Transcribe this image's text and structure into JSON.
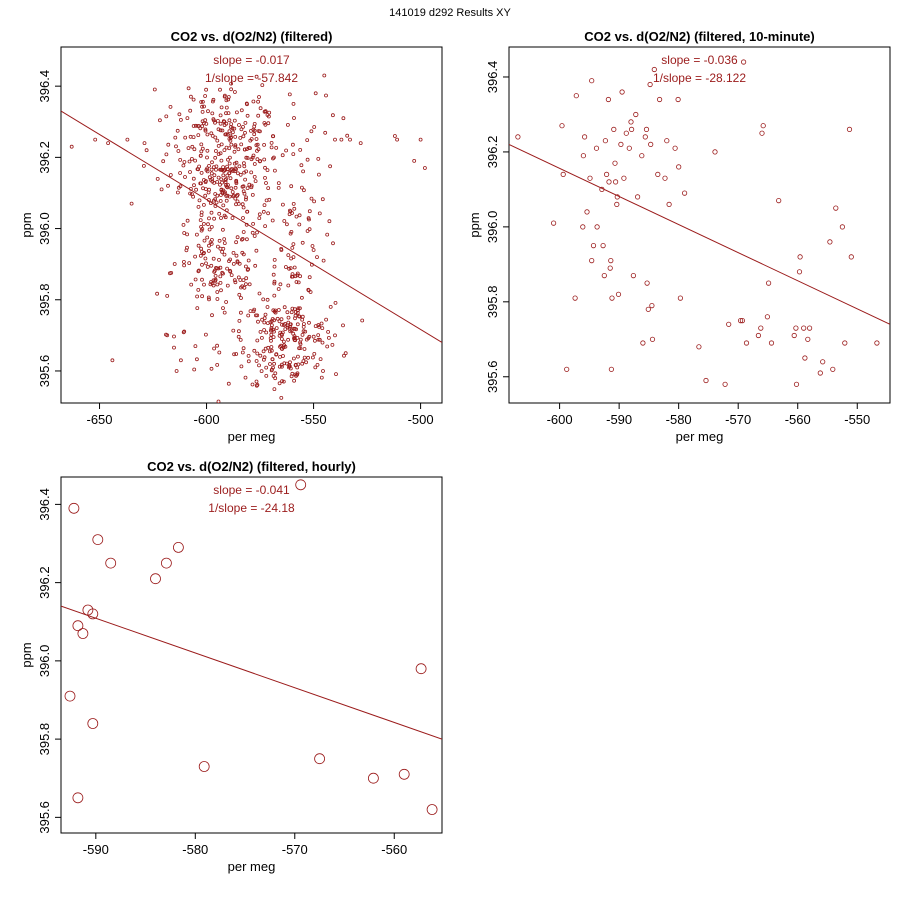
{
  "page_title": "141019   d292   Results XY",
  "colors": {
    "data": "#9b1b1b",
    "axis": "#000000",
    "background": "#ffffff"
  },
  "chart_data": [
    {
      "type": "scatter",
      "title": "CO2 vs. d(O2/N2) (filtered)",
      "xlabel": "per meg",
      "ylabel": "ppm",
      "xlim": [
        -668,
        -490
      ],
      "ylim": [
        395.51,
        396.51
      ],
      "xticks": [
        -650,
        -600,
        -550,
        -500
      ],
      "yticks": [
        395.6,
        395.8,
        396.0,
        396.2,
        396.4
      ],
      "xtick_labels": [
        "-650",
        "-600",
        "-550",
        "-500"
      ],
      "ytick_labels": [
        "395.6",
        "395.8",
        "396.0",
        "396.2",
        "396.4"
      ],
      "annotations": [
        "slope = -0.017",
        "1/slope = -57.842"
      ],
      "fit_line": [
        {
          "x": -668,
          "y": 396.33
        },
        {
          "x": -490,
          "y": 395.68
        }
      ],
      "marker_size": 1.5,
      "points": [
        {
          "x": -663,
          "y": 396.23
        },
        {
          "x": -652,
          "y": 396.25
        },
        {
          "x": -646,
          "y": 396.24
        },
        {
          "x": -644,
          "y": 395.63
        },
        {
          "x": -637,
          "y": 396.25
        },
        {
          "x": -635,
          "y": 396.07
        },
        {
          "x": -629,
          "y": 396.24
        },
        {
          "x": -628,
          "y": 396.22
        },
        {
          "x": -621,
          "y": 396.11
        },
        {
          "x": -618,
          "y": 396.12
        },
        {
          "x": -512,
          "y": 396.26
        },
        {
          "x": -511,
          "y": 396.25
        },
        {
          "x": -503,
          "y": 396.19
        },
        {
          "x": -500,
          "y": 396.25
        },
        {
          "x": -498,
          "y": 396.17
        },
        {
          "x": -528,
          "y": 396.24
        },
        {
          "x": -533,
          "y": 396.25
        },
        {
          "x": -537,
          "y": 396.25
        },
        {
          "x": -540,
          "y": 396.25
        },
        {
          "x": -545,
          "y": 396.43
        },
        {
          "x": -542,
          "y": 395.78
        },
        {
          "x": -540,
          "y": 395.7
        },
        {
          "x": -535,
          "y": 395.65
        },
        {
          "x": -614,
          "y": 395.6
        },
        {
          "x": -612,
          "y": 395.63
        },
        {
          "x": -549,
          "y": 396.38
        }
      ],
      "clusters": [
        {
          "cx": -592,
          "cy": 396.24,
          "sx": 13,
          "sy": 0.06,
          "n": 160
        },
        {
          "cx": -591,
          "cy": 396.13,
          "sx": 11,
          "sy": 0.04,
          "n": 110
        },
        {
          "cx": -593,
          "cy": 396.03,
          "sx": 11,
          "sy": 0.07,
          "n": 70
        },
        {
          "cx": -594,
          "cy": 395.88,
          "sx": 11,
          "sy": 0.07,
          "n": 110
        },
        {
          "cx": -590,
          "cy": 396.35,
          "sx": 12,
          "sy": 0.04,
          "n": 40
        },
        {
          "cx": -562,
          "cy": 395.71,
          "sx": 11,
          "sy": 0.04,
          "n": 140
        },
        {
          "cx": -563,
          "cy": 395.61,
          "sx": 11,
          "sy": 0.03,
          "n": 60
        },
        {
          "cx": -560,
          "cy": 395.95,
          "sx": 8,
          "sy": 0.09,
          "n": 70
        },
        {
          "cx": -565,
          "cy": 396.23,
          "sx": 13,
          "sy": 0.08,
          "n": 40
        },
        {
          "cx": -588,
          "cy": 395.67,
          "sx": 14,
          "sy": 0.07,
          "n": 40
        }
      ]
    },
    {
      "type": "scatter",
      "title": "CO2 vs. d(O2/N2) (filtered, 10-minute)",
      "xlabel": "per meg",
      "ylabel": "ppm",
      "xlim": [
        -608.5,
        -544.5
      ],
      "ylim": [
        395.53,
        396.48
      ],
      "xticks": [
        -600,
        -590,
        -580,
        -570,
        -560,
        -550
      ],
      "yticks": [
        395.6,
        395.8,
        396.0,
        396.2,
        396.4
      ],
      "xtick_labels": [
        "-600",
        "-590",
        "-580",
        "-570",
        "-560",
        "-550"
      ],
      "ytick_labels": [
        "395.6",
        "395.8",
        "396.0",
        "396.2",
        "396.4"
      ],
      "annotations": [
        "slope = -0.036",
        "1/slope = -28.122"
      ],
      "fit_line": [
        {
          "x": -608.5,
          "y": 396.22
        },
        {
          "x": -544.5,
          "y": 395.74
        }
      ],
      "marker_size": 2.2,
      "points": [
        {
          "x": -607,
          "y": 396.24
        },
        {
          "x": -601,
          "y": 396.01
        },
        {
          "x": -599.6,
          "y": 396.27
        },
        {
          "x": -599.4,
          "y": 396.14
        },
        {
          "x": -598.8,
          "y": 395.62
        },
        {
          "x": -597.2,
          "y": 396.35
        },
        {
          "x": -597.4,
          "y": 395.81
        },
        {
          "x": -596.1,
          "y": 396.0
        },
        {
          "x": -596.0,
          "y": 396.19
        },
        {
          "x": -595.4,
          "y": 396.04
        },
        {
          "x": -595.8,
          "y": 396.24
        },
        {
          "x": -594.9,
          "y": 396.13
        },
        {
          "x": -594.6,
          "y": 396.39
        },
        {
          "x": -594.3,
          "y": 395.95
        },
        {
          "x": -594.6,
          "y": 395.91
        },
        {
          "x": -593.8,
          "y": 396.21
        },
        {
          "x": -593.7,
          "y": 396.0
        },
        {
          "x": -592.9,
          "y": 396.1
        },
        {
          "x": -592.7,
          "y": 395.95
        },
        {
          "x": -592.5,
          "y": 395.87
        },
        {
          "x": -592.3,
          "y": 396.23
        },
        {
          "x": -592.1,
          "y": 396.14
        },
        {
          "x": -591.8,
          "y": 396.34
        },
        {
          "x": -591.7,
          "y": 396.12
        },
        {
          "x": -591.5,
          "y": 395.89
        },
        {
          "x": -591.4,
          "y": 395.91
        },
        {
          "x": -591.2,
          "y": 395.81
        },
        {
          "x": -591.3,
          "y": 395.62
        },
        {
          "x": -590.9,
          "y": 396.26
        },
        {
          "x": -590.7,
          "y": 396.17
        },
        {
          "x": -590.6,
          "y": 396.12
        },
        {
          "x": -590.4,
          "y": 396.06
        },
        {
          "x": -590.3,
          "y": 396.08
        },
        {
          "x": -590.1,
          "y": 395.82
        },
        {
          "x": -589.7,
          "y": 396.22
        },
        {
          "x": -589.5,
          "y": 396.36
        },
        {
          "x": -589.2,
          "y": 396.13
        },
        {
          "x": -588.8,
          "y": 396.25
        },
        {
          "x": -588.3,
          "y": 396.21
        },
        {
          "x": -588.0,
          "y": 396.28
        },
        {
          "x": -587.9,
          "y": 396.26
        },
        {
          "x": -587.6,
          "y": 395.87
        },
        {
          "x": -587.2,
          "y": 396.3
        },
        {
          "x": -586.9,
          "y": 396.08
        },
        {
          "x": -586.2,
          "y": 396.19
        },
        {
          "x": -586.0,
          "y": 395.69
        },
        {
          "x": -585.6,
          "y": 396.24
        },
        {
          "x": -585.4,
          "y": 396.26
        },
        {
          "x": -585.3,
          "y": 395.85
        },
        {
          "x": -585.1,
          "y": 395.78
        },
        {
          "x": -584.8,
          "y": 396.38
        },
        {
          "x": -584.7,
          "y": 396.22
        },
        {
          "x": -584.5,
          "y": 395.79
        },
        {
          "x": -584.4,
          "y": 395.7
        },
        {
          "x": -584.1,
          "y": 396.42
        },
        {
          "x": -583.5,
          "y": 396.14
        },
        {
          "x": -583.2,
          "y": 396.34
        },
        {
          "x": -582.3,
          "y": 396.13
        },
        {
          "x": -582.0,
          "y": 396.23
        },
        {
          "x": -581.6,
          "y": 396.06
        },
        {
          "x": -580.6,
          "y": 396.21
        },
        {
          "x": -580.1,
          "y": 396.34
        },
        {
          "x": -580.0,
          "y": 396.16
        },
        {
          "x": -579.7,
          "y": 395.81
        },
        {
          "x": -579.0,
          "y": 396.09
        },
        {
          "x": -576.6,
          "y": 395.68
        },
        {
          "x": -575.4,
          "y": 395.59
        },
        {
          "x": -573.9,
          "y": 396.2
        },
        {
          "x": -572.2,
          "y": 395.58
        },
        {
          "x": -571.6,
          "y": 395.74
        },
        {
          "x": -569.6,
          "y": 395.75
        },
        {
          "x": -569.3,
          "y": 395.75
        },
        {
          "x": -569.1,
          "y": 396.44
        },
        {
          "x": -568.6,
          "y": 395.69
        },
        {
          "x": -566.6,
          "y": 395.71
        },
        {
          "x": -566.2,
          "y": 395.73
        },
        {
          "x": -566.0,
          "y": 396.25
        },
        {
          "x": -565.8,
          "y": 396.27
        },
        {
          "x": -565.1,
          "y": 395.76
        },
        {
          "x": -564.9,
          "y": 395.85
        },
        {
          "x": -564.4,
          "y": 395.69
        },
        {
          "x": -563.2,
          "y": 396.07
        },
        {
          "x": -560.6,
          "y": 395.71
        },
        {
          "x": -560.3,
          "y": 395.73
        },
        {
          "x": -560.2,
          "y": 395.58
        },
        {
          "x": -559.7,
          "y": 395.88
        },
        {
          "x": -559.6,
          "y": 395.92
        },
        {
          "x": -559.0,
          "y": 395.73
        },
        {
          "x": -558.8,
          "y": 395.65
        },
        {
          "x": -558.3,
          "y": 395.7
        },
        {
          "x": -558.0,
          "y": 395.73
        },
        {
          "x": -556.2,
          "y": 395.61
        },
        {
          "x": -555.8,
          "y": 395.64
        },
        {
          "x": -554.6,
          "y": 395.96
        },
        {
          "x": -554.1,
          "y": 395.62
        },
        {
          "x": -553.6,
          "y": 396.05
        },
        {
          "x": -552.5,
          "y": 396.0
        },
        {
          "x": -552.1,
          "y": 395.69
        },
        {
          "x": -551.3,
          "y": 396.26
        },
        {
          "x": -551.0,
          "y": 395.92
        },
        {
          "x": -546.7,
          "y": 395.69
        }
      ]
    },
    {
      "type": "scatter",
      "title": "CO2 vs. d(O2/N2) (filtered, hourly)",
      "xlabel": "per meg",
      "ylabel": "ppm",
      "xlim": [
        -593.5,
        -555.2
      ],
      "ylim": [
        395.56,
        396.47
      ],
      "xticks": [
        -590,
        -580,
        -570,
        -560
      ],
      "yticks": [
        395.6,
        395.8,
        396.0,
        396.2,
        396.4
      ],
      "xtick_labels": [
        "-590",
        "-580",
        "-570",
        "-560"
      ],
      "ytick_labels": [
        "395.6",
        "395.8",
        "396.0",
        "396.2",
        "396.4"
      ],
      "annotations": [
        "slope = -0.041",
        "1/slope = -24.18"
      ],
      "fit_line": [
        {
          "x": -593.5,
          "y": 396.14
        },
        {
          "x": -555.2,
          "y": 395.8
        }
      ],
      "marker_size": 5,
      "points": [
        {
          "x": -592.2,
          "y": 396.39
        },
        {
          "x": -592.6,
          "y": 395.91
        },
        {
          "x": -591.8,
          "y": 396.09
        },
        {
          "x": -591.8,
          "y": 395.65
        },
        {
          "x": -591.3,
          "y": 396.07
        },
        {
          "x": -590.8,
          "y": 396.13
        },
        {
          "x": -590.3,
          "y": 396.12
        },
        {
          "x": -590.3,
          "y": 395.84
        },
        {
          "x": -589.8,
          "y": 396.31
        },
        {
          "x": -588.5,
          "y": 396.25
        },
        {
          "x": -584.0,
          "y": 396.21
        },
        {
          "x": -582.9,
          "y": 396.25
        },
        {
          "x": -581.7,
          "y": 396.29
        },
        {
          "x": -579.1,
          "y": 395.73
        },
        {
          "x": -569.4,
          "y": 396.45
        },
        {
          "x": -567.5,
          "y": 395.75
        },
        {
          "x": -562.1,
          "y": 395.7
        },
        {
          "x": -559.0,
          "y": 395.71
        },
        {
          "x": -557.3,
          "y": 395.98
        },
        {
          "x": -556.2,
          "y": 395.62
        }
      ]
    }
  ]
}
